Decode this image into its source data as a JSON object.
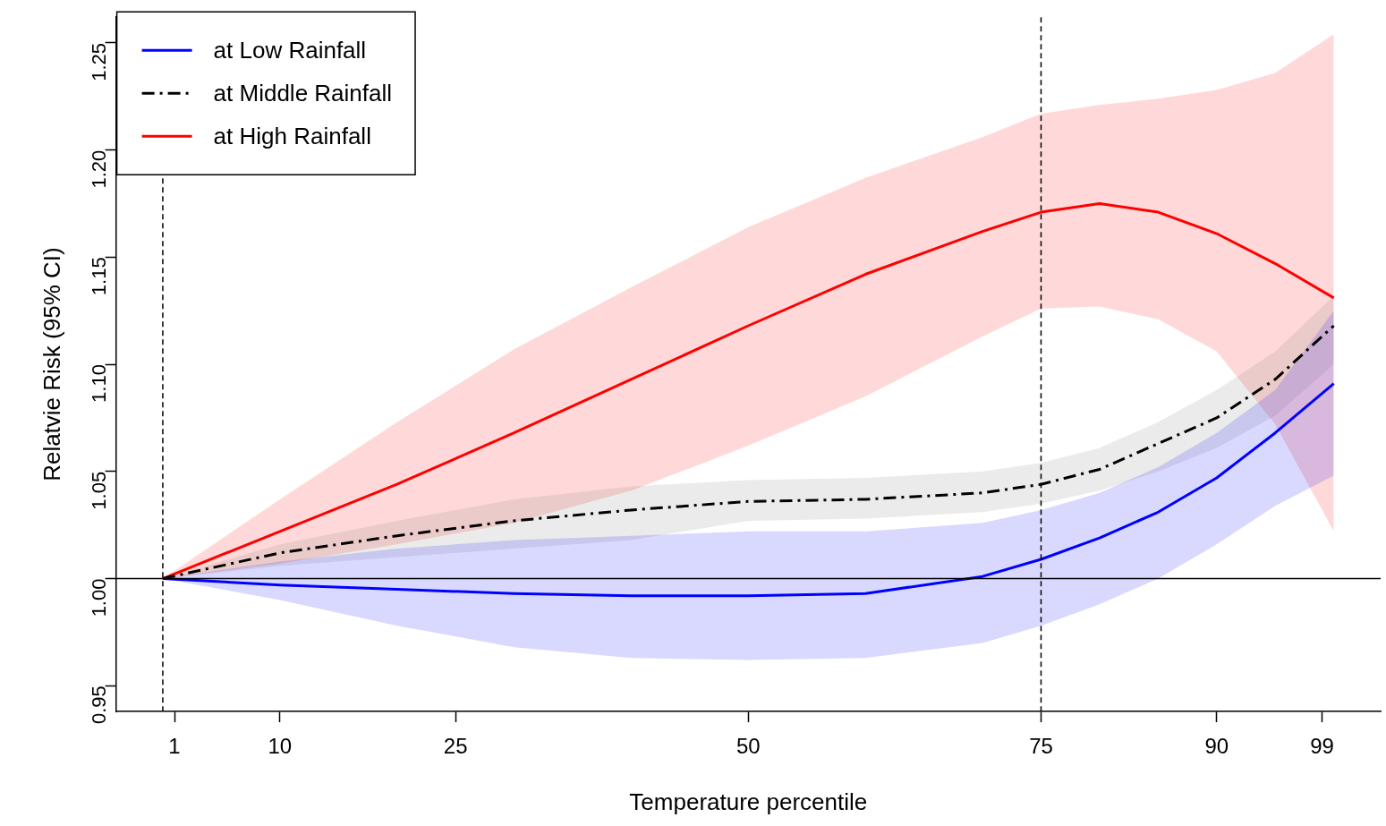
{
  "chart_data": {
    "type": "line",
    "xlabel": "Temperature percentile",
    "ylabel": "Relatvie Risk (95% CI)",
    "x": [
      0,
      10,
      20,
      30,
      40,
      50,
      60,
      70,
      75,
      80,
      85,
      90,
      95,
      100
    ],
    "series": [
      {
        "name": "at Low Rainfall",
        "color": "#0000ff",
        "line_style": "solid",
        "values": [
          1.0,
          0.997,
          0.995,
          0.993,
          0.992,
          0.992,
          0.993,
          1.001,
          1.009,
          1.019,
          1.031,
          1.047,
          1.068,
          1.091
        ],
        "lower": [
          1.0,
          0.99,
          0.978,
          0.968,
          0.963,
          0.962,
          0.963,
          0.97,
          0.978,
          0.988,
          1.0,
          1.016,
          1.034,
          1.048
        ],
        "upper": [
          1.0,
          1.008,
          1.014,
          1.018,
          1.02,
          1.022,
          1.022,
          1.026,
          1.032,
          1.04,
          1.052,
          1.068,
          1.088,
          1.125
        ]
      },
      {
        "name": "at Middle Rainfall",
        "color": "#000000",
        "line_style": "dashed",
        "values": [
          1.0,
          1.012,
          1.02,
          1.027,
          1.032,
          1.036,
          1.037,
          1.04,
          1.044,
          1.051,
          1.063,
          1.075,
          1.093,
          1.118
        ],
        "lower": [
          1.0,
          1.006,
          1.01,
          1.014,
          1.018,
          1.027,
          1.028,
          1.031,
          1.035,
          1.041,
          1.05,
          1.061,
          1.076,
          1.1
        ],
        "upper": [
          1.0,
          1.016,
          1.027,
          1.037,
          1.043,
          1.046,
          1.047,
          1.05,
          1.054,
          1.061,
          1.073,
          1.088,
          1.106,
          1.132
        ]
      },
      {
        "name": "at High Rainfall",
        "color": "#ff0000",
        "line_style": "solid",
        "values": [
          1.0,
          1.022,
          1.044,
          1.068,
          1.093,
          1.118,
          1.142,
          1.162,
          1.171,
          1.175,
          1.171,
          1.161,
          1.147,
          1.131
        ],
        "lower": [
          1.0,
          1.007,
          1.016,
          1.026,
          1.041,
          1.062,
          1.085,
          1.113,
          1.126,
          1.127,
          1.121,
          1.106,
          1.072,
          1.022
        ],
        "upper": [
          1.0,
          1.037,
          1.073,
          1.107,
          1.136,
          1.164,
          1.187,
          1.206,
          1.217,
          1.221,
          1.224,
          1.228,
          1.236,
          1.254
        ]
      }
    ],
    "xlim": [
      -4,
      104
    ],
    "xticks": [
      1,
      10,
      25,
      50,
      75,
      90,
      99
    ],
    "ylim": [
      0.938,
      1.262
    ],
    "yticks": [
      0.95,
      {
        "value": 1,
        "label": "1.00"
      },
      1.05,
      {
        "value": 1.1,
        "label": "1.10"
      },
      1.15,
      {
        "value": 1.2,
        "label": "1.20"
      },
      1.25
    ],
    "ref_lines": [
      {
        "axis": "x",
        "value": 0,
        "line_style": "dashed"
      },
      {
        "axis": "x",
        "value": 75,
        "line_style": "dashed"
      },
      {
        "axis": "y",
        "value": 1,
        "line_style": "solid"
      }
    ],
    "grid": false,
    "legend": "top left"
  }
}
